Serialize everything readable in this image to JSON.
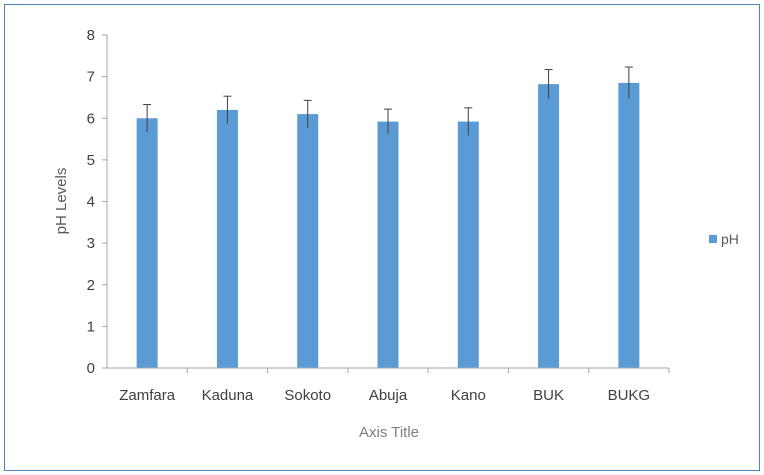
{
  "chart_data": {
    "type": "bar",
    "categories": [
      "Zamfara",
      "Kaduna",
      "Sokoto",
      "Abuja",
      "Kano",
      "BUK",
      "BUKG"
    ],
    "series": [
      {
        "name": "pH",
        "values": [
          6.0,
          6.2,
          6.1,
          5.92,
          5.92,
          6.82,
          6.85
        ],
        "error": [
          0.33,
          0.33,
          0.33,
          0.3,
          0.33,
          0.35,
          0.38
        ],
        "color": "#5b9bd5"
      }
    ],
    "xlabel": "Axis Title",
    "ylabel": "pH Levels",
    "ylim": [
      0,
      8
    ],
    "yticks": [
      "0",
      "1",
      "2",
      "3",
      "4",
      "5",
      "6",
      "7",
      "8"
    ],
    "grid": false,
    "legend": "right",
    "colors": {
      "frame": "#4f81bd",
      "axis": "#a6a6a6",
      "text": "#404040",
      "error_bar": "#404040"
    }
  }
}
